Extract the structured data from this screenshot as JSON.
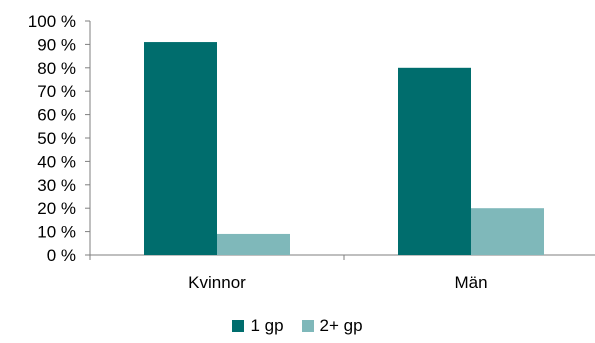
{
  "chart_data": {
    "type": "bar",
    "categories": [
      "Kvinnor",
      "Män"
    ],
    "series": [
      {
        "name": "1 gp",
        "values": [
          91,
          80
        ],
        "color": "#006d6d"
      },
      {
        "name": "2+ gp",
        "values": [
          9,
          20
        ],
        "color": "#7fb8ba"
      }
    ],
    "ylim": [
      0,
      100
    ],
    "y_ticks": [
      "0 %",
      "10 %",
      "20 %",
      "30 %",
      "40 %",
      "50 %",
      "60 %",
      "70 %",
      "80 %",
      "90 %",
      "100 %"
    ],
    "grid": false,
    "legend_position": "bottom"
  }
}
